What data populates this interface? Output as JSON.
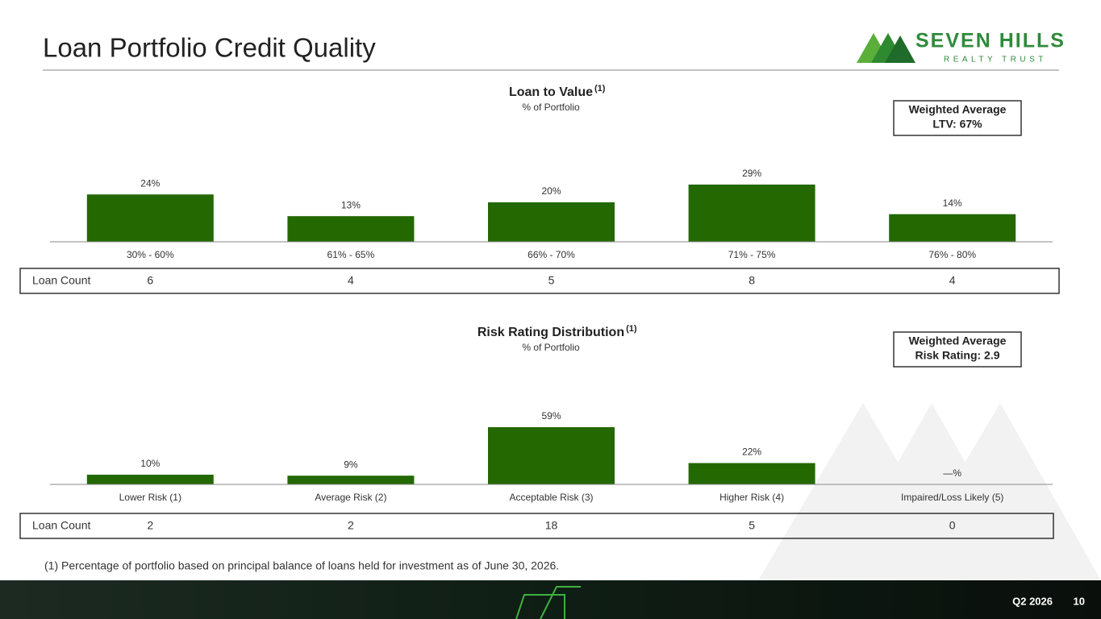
{
  "slide": {
    "title": "Loan Portfolio Credit Quality",
    "logo": {
      "name": "SEVEN HILLS",
      "tagline": "REALTY TRUST"
    },
    "footnote": "(1) Percentage of portfolio based on principal balance of loans held for investment as of June 30, 2026.",
    "footer": {
      "period": "Q2 2026",
      "page": 10
    }
  },
  "chart_data": [
    {
      "type": "bar",
      "title": "Loan to Value",
      "title_note": "(1)",
      "subtitle": "% of Portfolio",
      "categories": [
        "30% - 60%",
        "61% - 65%",
        "66% - 70%",
        "71% - 75%",
        "76% - 80%"
      ],
      "values": [
        24,
        13,
        20,
        29,
        14
      ],
      "value_labels": [
        "24%",
        "13%",
        "20%",
        "29%",
        "14%"
      ],
      "color": "#236800",
      "annotation": [
        "Weighted Average",
        "LTV: 67%"
      ],
      "table": {
        "label": "Loan Count",
        "values": [
          6,
          4,
          5,
          8,
          4
        ]
      }
    },
    {
      "type": "bar",
      "title": "Risk Rating Distribution",
      "title_note": "(1)",
      "subtitle": "% of Portfolio",
      "categories": [
        "Lower Risk (1)",
        "Average Risk (2)",
        "Acceptable Risk (3)",
        "Higher Risk (4)",
        "Impaired/Loss Likely (5)"
      ],
      "values": [
        10,
        9,
        59,
        22,
        0
      ],
      "value_labels": [
        "10%",
        "9%",
        "59%",
        "22%",
        "—%"
      ],
      "color": "#236800",
      "annotation": [
        "Weighted Average",
        "Risk Rating: 2.9"
      ],
      "table": {
        "label": "Loan Count",
        "values": [
          2,
          2,
          18,
          5,
          0
        ]
      }
    }
  ]
}
